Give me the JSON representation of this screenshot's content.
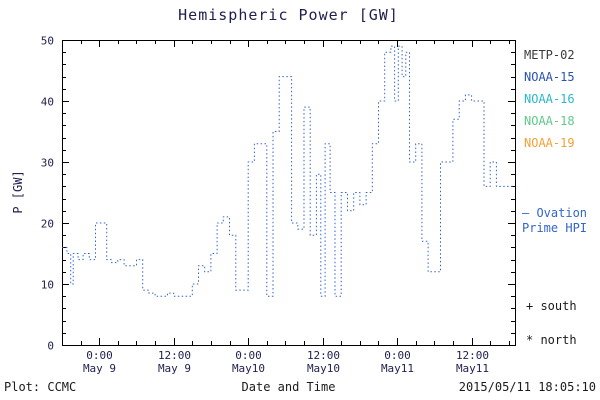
{
  "title": "Hemispheric Power [GW]",
  "axes": {
    "ylabel": "P [GW]",
    "xlabel": "Date and Time",
    "yticks": [
      0,
      10,
      20,
      30,
      40,
      50
    ],
    "xticks": [
      {
        "t": 0,
        "time": "0:00",
        "date": "May 9"
      },
      {
        "t": 12,
        "time": "12:00",
        "date": "May 9"
      },
      {
        "t": 24,
        "time": "0:00",
        "date": "May10"
      },
      {
        "t": 36,
        "time": "12:00",
        "date": "May10"
      },
      {
        "t": 48,
        "time": "0:00",
        "date": "May11"
      },
      {
        "t": 60,
        "time": "12:00",
        "date": "May11"
      }
    ]
  },
  "legend": {
    "satellites": [
      {
        "label": "METP-02",
        "color": "#3a3a3a"
      },
      {
        "label": "NOAA-15",
        "color": "#2952b3"
      },
      {
        "label": "NOAA-16",
        "color": "#2ab8cc"
      },
      {
        "label": "NOAA-18",
        "color": "#5fc98a"
      },
      {
        "label": "NOAA-19",
        "color": "#f5a033"
      }
    ],
    "model_line1": "— Ovation",
    "model_line2": "Prime HPI",
    "model_color": "#3366cc",
    "south_label": "+ south",
    "north_label": "* north"
  },
  "footer": {
    "left": "Plot: CCMC",
    "center": "Date and Time",
    "right": "2015/05/11 18:05:10"
  },
  "chart_data": {
    "type": "line",
    "style": "stepped-dotted",
    "title": "Hemispheric Power [GW]",
    "xlabel": "Date and Time",
    "ylabel": "P [GW]",
    "xlim": [
      -6,
      67
    ],
    "ylim": [
      0,
      50
    ],
    "x_unit": "hours relative to 2015 May 9 00:00",
    "grid": false,
    "legend_position": "right",
    "series": [
      {
        "name": "Ovation Prime HPI",
        "color": "#3366cc",
        "points": [
          [
            -6,
            16
          ],
          [
            -5.2,
            15
          ],
          [
            -4.6,
            10
          ],
          [
            -4.2,
            15
          ],
          [
            -3.4,
            14
          ],
          [
            -2.6,
            15
          ],
          [
            -1.6,
            14
          ],
          [
            -0.6,
            20
          ],
          [
            0.6,
            20
          ],
          [
            1.2,
            14
          ],
          [
            2,
            13.5
          ],
          [
            3,
            14
          ],
          [
            4,
            13
          ],
          [
            5,
            13
          ],
          [
            6,
            14
          ],
          [
            7,
            9
          ],
          [
            8,
            8.5
          ],
          [
            9,
            8
          ],
          [
            10,
            8
          ],
          [
            11,
            8.5
          ],
          [
            12,
            8
          ],
          [
            13,
            8
          ],
          [
            14,
            8
          ],
          [
            15,
            10
          ],
          [
            16,
            13
          ],
          [
            17,
            12
          ],
          [
            18,
            15
          ],
          [
            19,
            20
          ],
          [
            20,
            21
          ],
          [
            21,
            18
          ],
          [
            22,
            9
          ],
          [
            23,
            9
          ],
          [
            24,
            30
          ],
          [
            25,
            33
          ],
          [
            26,
            33
          ],
          [
            27,
            8
          ],
          [
            28,
            35
          ],
          [
            29,
            44
          ],
          [
            30,
            44
          ],
          [
            31,
            20
          ],
          [
            32,
            19
          ],
          [
            33,
            39
          ],
          [
            34,
            18
          ],
          [
            35,
            28
          ],
          [
            35.7,
            8
          ],
          [
            36.4,
            33
          ],
          [
            37.2,
            25
          ],
          [
            38,
            8
          ],
          [
            39,
            25
          ],
          [
            40,
            22
          ],
          [
            41,
            25
          ],
          [
            42,
            23
          ],
          [
            43,
            25
          ],
          [
            44,
            33
          ],
          [
            45,
            40
          ],
          [
            46,
            48
          ],
          [
            47,
            49
          ],
          [
            47.6,
            40
          ],
          [
            48.2,
            49
          ],
          [
            48.8,
            44
          ],
          [
            49.4,
            48
          ],
          [
            50,
            30
          ],
          [
            51,
            33
          ],
          [
            52,
            17
          ],
          [
            53,
            12
          ],
          [
            54,
            12
          ],
          [
            55,
            30
          ],
          [
            56,
            30
          ],
          [
            57,
            37
          ],
          [
            58,
            40
          ],
          [
            59,
            41
          ],
          [
            60,
            40
          ],
          [
            61,
            40
          ],
          [
            62,
            26
          ],
          [
            63,
            30
          ],
          [
            64,
            26
          ],
          [
            65,
            26
          ]
        ]
      }
    ]
  }
}
